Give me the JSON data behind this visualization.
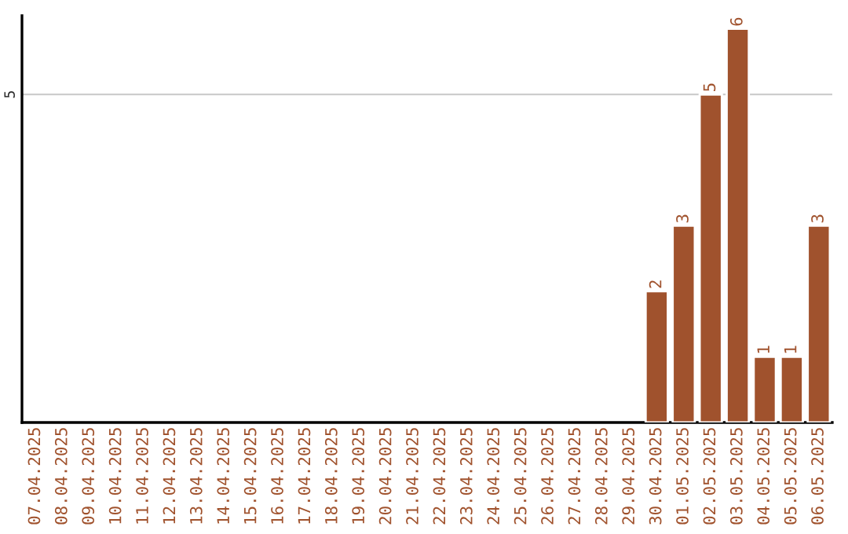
{
  "chart_data": {
    "type": "bar",
    "categories": [
      "07.04.2025",
      "08.04.2025",
      "09.04.2025",
      "10.04.2025",
      "11.04.2025",
      "12.04.2025",
      "13.04.2025",
      "14.04.2025",
      "15.04.2025",
      "16.04.2025",
      "17.04.2025",
      "18.04.2025",
      "19.04.2025",
      "20.04.2025",
      "21.04.2025",
      "22.04.2025",
      "23.04.2025",
      "24.04.2025",
      "25.04.2025",
      "26.04.2025",
      "27.04.2025",
      "28.04.2025",
      "29.04.2025",
      "30.04.2025",
      "01.05.2025",
      "02.05.2025",
      "03.05.2025",
      "04.05.2025",
      "05.05.2025",
      "06.05.2025"
    ],
    "values": [
      null,
      null,
      null,
      null,
      null,
      null,
      null,
      null,
      null,
      null,
      null,
      null,
      null,
      null,
      null,
      null,
      null,
      null,
      null,
      null,
      null,
      null,
      null,
      2,
      3,
      5,
      6,
      1,
      1,
      3
    ],
    "data_labels": true,
    "color": "#a0522d",
    "ylim": [
      0,
      6.2
    ],
    "yticks": [
      5
    ],
    "grid": "y",
    "legend": false
  }
}
